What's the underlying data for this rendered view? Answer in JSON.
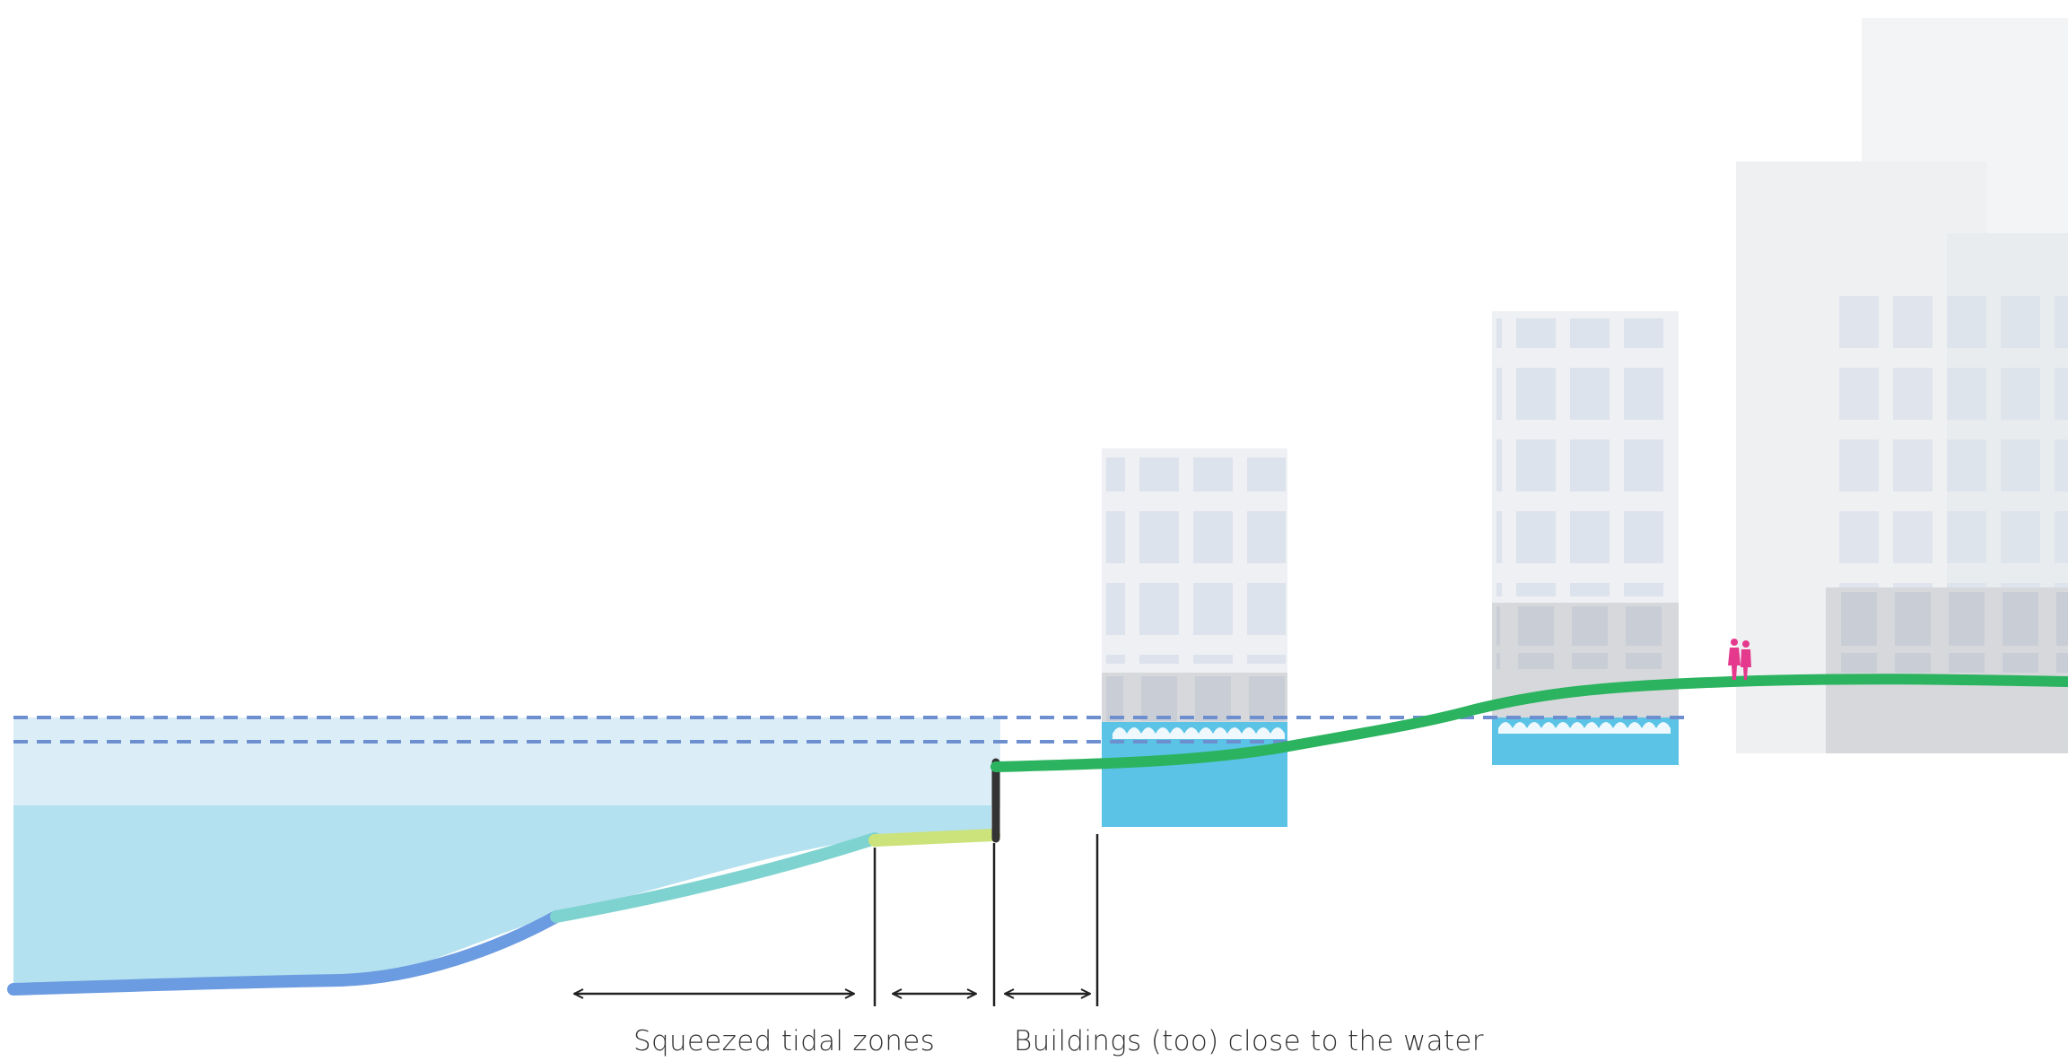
{
  "labels": {
    "squeezed_tidal_zones": "Squeezed tidal zones",
    "buildings_close": "Buildings (too) close to the water"
  },
  "colors": {
    "high_water_band": "#dbeef7",
    "water": "#b3e1ef",
    "flooded_basement": "#5bc3e6",
    "water_level_line": "#6d8fcf",
    "riverbed_deep": "#6b9be0",
    "riverbed_shallow": "#7ed3d0",
    "tidal_zone": "#cce27a",
    "embankment": "#2bb35f",
    "quay_wall": "#333333",
    "building_light": "#eef0f3",
    "building_base": "#d6d8db",
    "window": "#dde3ec",
    "pedestrians": "#e4398c",
    "dimension_lines": "#222222"
  },
  "icons": [
    "pedestrians-icon",
    "wave-icon",
    "arrow-icon"
  ]
}
